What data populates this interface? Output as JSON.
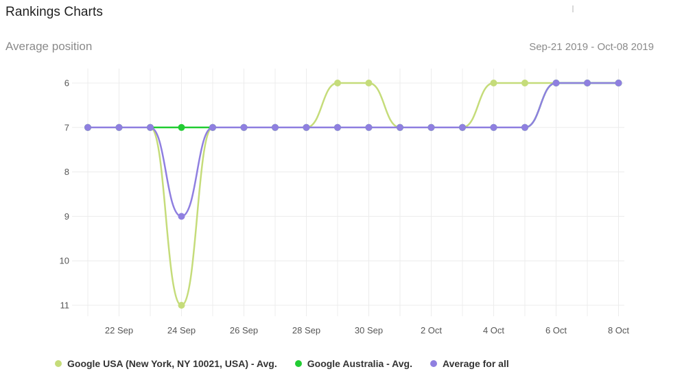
{
  "header": {
    "title": "Rankings Charts",
    "subtitle": "Average position",
    "date_range": "Sep-21 2019 - Oct-08 2019"
  },
  "chart_data": {
    "type": "line",
    "title": "Average position",
    "xlabel": "",
    "ylabel": "",
    "y_inverted": true,
    "ylim": [
      6,
      11
    ],
    "yticks": [
      "6",
      "7",
      "8",
      "9",
      "10",
      "11"
    ],
    "x": [
      "21 Sep",
      "22 Sep",
      "23 Sep",
      "24 Sep",
      "25 Sep",
      "26 Sep",
      "27 Sep",
      "28 Sep",
      "29 Sep",
      "30 Sep",
      "1 Oct",
      "2 Oct",
      "3 Oct",
      "4 Oct",
      "5 Oct",
      "6 Oct",
      "7 Oct",
      "8 Oct"
    ],
    "xtick_labels": [
      "22 Sep",
      "24 Sep",
      "26 Sep",
      "28 Sep",
      "30 Sep",
      "2 Oct",
      "4 Oct",
      "6 Oct",
      "8 Oct"
    ],
    "grid": true,
    "legend_position": "bottom",
    "series": [
      {
        "name": "Google USA (New York, NY 10021, USA) - Avg.",
        "color": "#c5dc7a",
        "values": [
          7,
          7,
          7,
          11,
          7,
          7,
          7,
          7,
          6,
          6,
          7,
          7,
          7,
          6,
          6,
          6,
          6,
          6
        ]
      },
      {
        "name": "Google Australia - Avg.",
        "color": "#22cc33",
        "values": [
          7,
          7,
          7,
          7,
          7,
          7,
          7,
          7,
          7,
          7,
          7,
          7,
          7,
          7,
          7,
          6,
          6,
          6
        ]
      },
      {
        "name": "Average for all",
        "color": "#8f7fe0",
        "values": [
          7,
          7,
          7,
          9,
          7,
          7,
          7,
          7,
          7,
          7,
          7,
          7,
          7,
          7,
          7,
          6,
          6,
          6
        ]
      }
    ]
  }
}
